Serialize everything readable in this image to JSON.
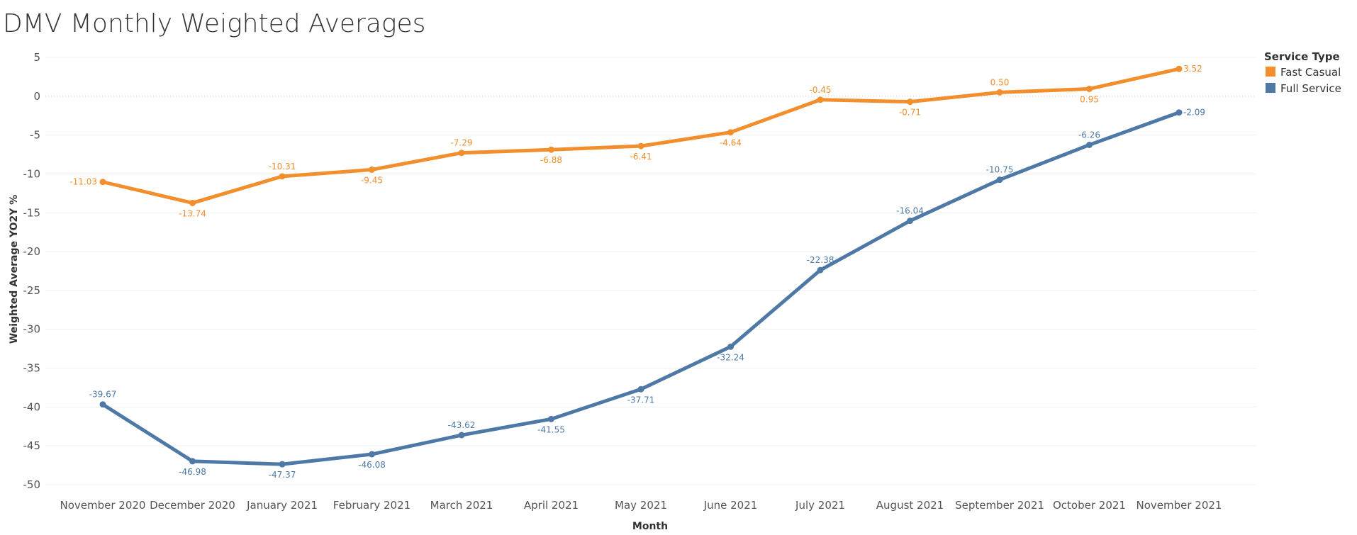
{
  "chart_data": {
    "type": "line",
    "title": "DMV Monthly Weighted Averages",
    "xlabel": "Month",
    "ylabel": "Weighted Average YO2Y %",
    "categories": [
      "November 2020",
      "December 2020",
      "January 2021",
      "February 2021",
      "March 2021",
      "April 2021",
      "May 2021",
      "June 2021",
      "July 2021",
      "August 2021",
      "September 2021",
      "October 2021",
      "November 2021"
    ],
    "yticks": [
      5,
      0,
      -5,
      -10,
      -15,
      -20,
      -25,
      -30,
      -35,
      -40,
      -45,
      -50
    ],
    "ylim": [
      -51,
      5
    ],
    "grid": true,
    "legend": {
      "title": "Service Type",
      "position": "top-right"
    },
    "series": [
      {
        "name": "Fast Casual",
        "color": "#f28e2b",
        "values": [
          -11.03,
          -13.74,
          -10.31,
          -9.45,
          -7.29,
          -6.88,
          -6.41,
          -4.64,
          -0.45,
          -0.71,
          0.5,
          0.95,
          3.52
        ],
        "labels": [
          "-11.03",
          "-13.74",
          "-10.31",
          "-9.45",
          "-7.29",
          "-6.88",
          "-6.41",
          "-4.64",
          "-0.45",
          "-0.71",
          "0.50",
          "0.95",
          "3.52"
        ],
        "label_positions": [
          "left",
          "below",
          "above",
          "below",
          "above",
          "below",
          "below",
          "below",
          "above",
          "below",
          "above",
          "below",
          "right"
        ]
      },
      {
        "name": "Full Service",
        "color": "#4e79a7",
        "values": [
          -39.67,
          -46.98,
          -47.37,
          -46.08,
          -43.62,
          -41.55,
          -37.71,
          -32.24,
          -22.38,
          -16.04,
          -10.75,
          -6.26,
          -2.09
        ],
        "labels": [
          "-39.67",
          "-46.98",
          "-47.37",
          "-46.08",
          "-43.62",
          "-41.55",
          "-37.71",
          "-32.24",
          "-22.38",
          "-16.04",
          "-10.75",
          "-6.26",
          "-2.09"
        ],
        "label_positions": [
          "above",
          "below",
          "below",
          "below",
          "above",
          "below",
          "below",
          "below",
          "above",
          "above",
          "above",
          "above",
          "right"
        ]
      }
    ]
  }
}
